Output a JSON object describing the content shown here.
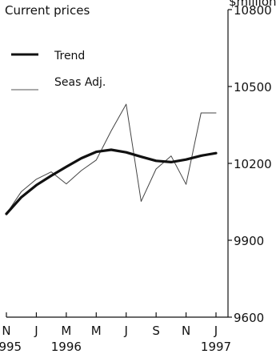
{
  "chart_data": {
    "type": "line",
    "title": "Current prices",
    "ylabel": "$million",
    "ylim": [
      9600,
      10800
    ],
    "yticks": [
      "10800",
      "10500",
      "10200",
      "9900",
      "9600"
    ],
    "x": [
      "Nov 1995",
      "Dec 1995",
      "Jan 1996",
      "Feb 1996",
      "Mar 1996",
      "Apr 1996",
      "May 1996",
      "Jun 1996",
      "Jul 1996",
      "Aug 1996",
      "Sep 1996",
      "Oct 1996",
      "Nov 1996",
      "Dec 1996",
      "Jan 1997"
    ],
    "x_tick_labels": [
      "N",
      "J",
      "M",
      "M",
      "J",
      "S",
      "N",
      "J"
    ],
    "year_labels": [
      "1995",
      "1996",
      "1997"
    ],
    "series": [
      {
        "name": "Trend",
        "values": [
          10003,
          10068,
          10115,
          10152,
          10187,
          10220,
          10245,
          10253,
          10243,
          10226,
          10210,
          10205,
          10215,
          10230,
          10240
        ]
      },
      {
        "name": "Seas Adj.",
        "values": [
          10003,
          10090,
          10138,
          10167,
          10120,
          10172,
          10213,
          10327,
          10431,
          10052,
          10178,
          10229,
          10118,
          10397,
          10397
        ]
      }
    ],
    "legend_position": "top-left",
    "grid": false
  }
}
